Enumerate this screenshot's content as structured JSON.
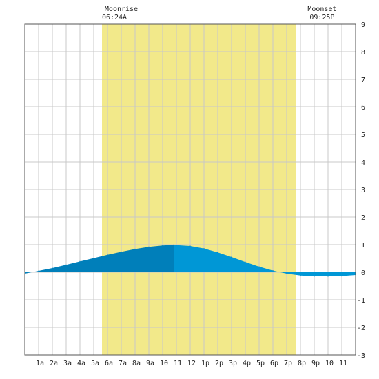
{
  "chart_data": {
    "type": "area",
    "title": "",
    "xlabel": "",
    "ylabel": "",
    "xlim": [
      0,
      24
    ],
    "ylim": [
      -3,
      9
    ],
    "y_ticks": [
      9,
      8,
      7,
      6,
      5,
      4,
      3,
      2,
      1,
      0,
      -1,
      -2,
      -3
    ],
    "x_tick_labels": [
      "1a",
      "2a",
      "3a",
      "4a",
      "5a",
      "6a",
      "7a",
      "8a",
      "9a",
      "10",
      "11",
      "12",
      "1p",
      "2p",
      "3p",
      "4p",
      "5p",
      "6p",
      "7p",
      "8p",
      "9p",
      "10",
      "11"
    ],
    "grid": true,
    "moon": {
      "rise_label": "Moonrise",
      "rise_time": "06:24A",
      "rise_hour": 6.4,
      "set_label": "Moonset",
      "set_time": "09:25P",
      "set_hour": 21.42
    },
    "daylight_band_hours": [
      5.6,
      19.7
    ],
    "rising_until_hour": 10.8,
    "series": [
      {
        "x": [
          0,
          1,
          2,
          3,
          4,
          5,
          6,
          7,
          8,
          9,
          10,
          10.8,
          11,
          12,
          13,
          14,
          15,
          16,
          17,
          18,
          19,
          20,
          21,
          22,
          23,
          24
        ],
        "values": [
          -0.05,
          0.05,
          0.15,
          0.27,
          0.39,
          0.51,
          0.63,
          0.74,
          0.84,
          0.92,
          0.97,
          0.99,
          0.98,
          0.95,
          0.86,
          0.72,
          0.55,
          0.37,
          0.2,
          0.06,
          -0.05,
          -0.12,
          -0.15,
          -0.15,
          -0.14,
          -0.1
        ]
      }
    ],
    "colors": {
      "daylight": "#f2e98a",
      "rising_fill": "#007fba",
      "falling_fill": "#0097d6",
      "grid": "#c8c8c8",
      "axis": "#555555"
    }
  }
}
